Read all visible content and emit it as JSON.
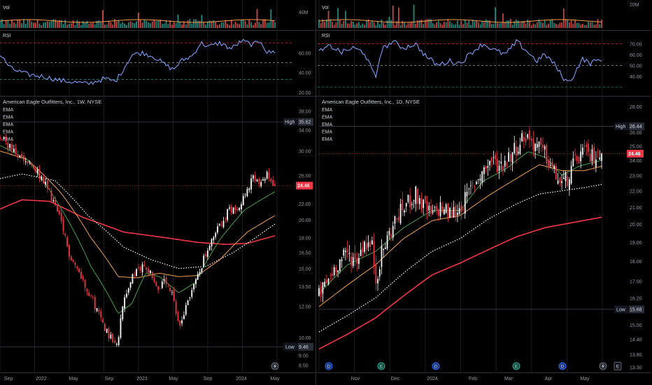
{
  "colors": {
    "background": "#000000",
    "grid": "#1c1c1c",
    "separator": "#2a2e39",
    "up": "#26a69a",
    "down": "#ef5350",
    "candle_up": "#ffffff",
    "candle_down": "#f23645",
    "rsi": "#7e9df6",
    "ema_fast": "#43a047",
    "ema_mid": "#f0a050",
    "ema_slow": "#ffffff",
    "ema_long": "#f23645",
    "volume_ma": "#f0a050",
    "last_price": "#f23645",
    "high_low_label": "#131722"
  },
  "icons": [
    "lightning-icon",
    "dividend-icon",
    "earnings-icon"
  ],
  "chart_data": [
    {
      "type": "candlestick",
      "title": "American Eagle Outfitters, Inc., 1W, NYSE",
      "indicators": [
        "EMA",
        "EMA",
        "EMA",
        "EMA",
        "EMA"
      ],
      "volume_label": "Vol",
      "volume_tick": "40M",
      "rsi_label": "RSI",
      "rsi_ticks": [
        "60.00",
        "40.00",
        "20.00"
      ],
      "price_ticks": [
        "38.00",
        "34.00",
        "30.00",
        "26.00",
        "22.00",
        "20.00",
        "18.00",
        "16.50",
        "15.00",
        "13.50",
        "12.00",
        "10.00",
        "9.00",
        "8.50"
      ],
      "x_labels": [
        "Sep",
        "2022",
        "May",
        "Sep",
        "2023",
        "May",
        "Sep",
        "2024",
        "May"
      ],
      "high_label": "High",
      "high_value": "35.62",
      "low_label": "Low",
      "low_value": "9.46",
      "last_price": "24.46",
      "ylim": [
        8.2,
        40.5
      ],
      "close_key": [
        [
          0,
          32.5
        ],
        [
          0.03,
          31
        ],
        [
          0.06,
          29.2
        ],
        [
          0.1,
          28
        ],
        [
          0.14,
          26.2
        ],
        [
          0.18,
          23.5
        ],
        [
          0.22,
          19.8
        ],
        [
          0.25,
          16.5
        ],
        [
          0.29,
          14.5
        ],
        [
          0.33,
          12.8
        ],
        [
          0.36,
          11.4
        ],
        [
          0.4,
          10
        ],
        [
          0.43,
          9.8
        ],
        [
          0.45,
          12.5
        ],
        [
          0.48,
          14.2
        ],
        [
          0.52,
          15.3
        ],
        [
          0.55,
          14.7
        ],
        [
          0.57,
          13.3
        ],
        [
          0.6,
          13.8
        ],
        [
          0.63,
          12.6
        ],
        [
          0.65,
          10.5
        ],
        [
          0.68,
          12.3
        ],
        [
          0.71,
          13.8
        ],
        [
          0.74,
          15.8
        ],
        [
          0.77,
          17.5
        ],
        [
          0.8,
          19.5
        ],
        [
          0.83,
          21
        ],
        [
          0.86,
          21.5
        ],
        [
          0.89,
          23
        ],
        [
          0.92,
          25.5
        ],
        [
          0.95,
          24.5
        ],
        [
          0.97,
          26
        ],
        [
          1.0,
          24.46
        ]
      ],
      "ema_fast_key": [
        [
          0,
          31
        ],
        [
          0.1,
          28.5
        ],
        [
          0.22,
          21.5
        ],
        [
          0.33,
          15.2
        ],
        [
          0.43,
          11.5
        ],
        [
          0.48,
          12.2
        ],
        [
          0.53,
          14.6
        ],
        [
          0.58,
          14.3
        ],
        [
          0.65,
          13
        ],
        [
          0.71,
          13.8
        ],
        [
          0.8,
          17.8
        ],
        [
          0.89,
          21.2
        ],
        [
          1.0,
          23.6
        ]
      ],
      "ema_mid_key": [
        [
          0,
          30
        ],
        [
          0.1,
          28.5
        ],
        [
          0.22,
          23.5
        ],
        [
          0.33,
          18
        ],
        [
          0.43,
          14.3
        ],
        [
          0.5,
          14.2
        ],
        [
          0.58,
          14.6
        ],
        [
          0.65,
          14.3
        ],
        [
          0.72,
          14.4
        ],
        [
          0.8,
          15.8
        ],
        [
          0.9,
          18.6
        ],
        [
          1.0,
          20.5
        ]
      ],
      "ema_slow_key": [
        [
          0,
          25.5
        ],
        [
          0.08,
          26.2
        ],
        [
          0.2,
          25.2
        ],
        [
          0.32,
          20.5
        ],
        [
          0.45,
          17
        ],
        [
          0.55,
          15.8
        ],
        [
          0.65,
          15
        ],
        [
          0.75,
          15.2
        ],
        [
          0.85,
          16.5
        ],
        [
          0.93,
          18
        ],
        [
          1.0,
          19.5
        ]
      ],
      "ema_long_key": [
        [
          0,
          21.3
        ],
        [
          0.08,
          22.5
        ],
        [
          0.18,
          22.3
        ],
        [
          0.3,
          20.3
        ],
        [
          0.45,
          18.6
        ],
        [
          0.6,
          18
        ],
        [
          0.72,
          17.5
        ],
        [
          0.82,
          17.3
        ],
        [
          0.9,
          17.4
        ],
        [
          1.0,
          18.2
        ]
      ],
      "rsi_key": [
        [
          0,
          58
        ],
        [
          0.04,
          44
        ],
        [
          0.1,
          38
        ],
        [
          0.16,
          36
        ],
        [
          0.22,
          32
        ],
        [
          0.28,
          30
        ],
        [
          0.32,
          28.5
        ],
        [
          0.38,
          34
        ],
        [
          0.42,
          31
        ],
        [
          0.45,
          44
        ],
        [
          0.48,
          58
        ],
        [
          0.52,
          60
        ],
        [
          0.56,
          56
        ],
        [
          0.6,
          48
        ],
        [
          0.63,
          43
        ],
        [
          0.66,
          52
        ],
        [
          0.7,
          57
        ],
        [
          0.73,
          70
        ],
        [
          0.76,
          66
        ],
        [
          0.8,
          70
        ],
        [
          0.84,
          64
        ],
        [
          0.88,
          72
        ],
        [
          0.92,
          68
        ],
        [
          0.95,
          72
        ],
        [
          0.97,
          60
        ],
        [
          1.0,
          61
        ]
      ]
    },
    {
      "type": "candlestick",
      "title": "American Eagle Outfitters, Inc., 1D, NYSE",
      "indicators": [
        "EMA",
        "EMA",
        "EMA",
        "EMA",
        "EMA"
      ],
      "volume_label": "Vol",
      "volume_tick": "20M",
      "rsi_label": "RSI",
      "rsi_ticks": [
        "70.00",
        "60.00",
        "50.00",
        "40.00"
      ],
      "price_ticks": [
        "28.00",
        "26.00",
        "25.00",
        "24.00",
        "23.00",
        "22.00",
        "21.00",
        "20.00",
        "19.00",
        "18.00",
        "17.00",
        "16.20",
        "15.00",
        "14.40",
        "13.80",
        "13.30"
      ],
      "x_labels": [
        "Nov",
        "Dec",
        "2024",
        "Feb",
        "Mar",
        "Apr",
        "May"
      ],
      "high_label": "High",
      "high_value": "26.44",
      "low_label": "Low",
      "low_value": "15.68",
      "last_price": "24.46",
      "ylim": [
        13.15,
        28.5
      ],
      "close_key": [
        [
          0,
          16.3
        ],
        [
          0.03,
          17
        ],
        [
          0.06,
          17.8
        ],
        [
          0.1,
          18.4
        ],
        [
          0.13,
          18
        ],
        [
          0.16,
          19
        ],
        [
          0.19,
          18.7
        ],
        [
          0.2,
          17
        ],
        [
          0.22,
          18.3
        ],
        [
          0.25,
          19.5
        ],
        [
          0.28,
          20.5
        ],
        [
          0.31,
          21.2
        ],
        [
          0.34,
          21.8
        ],
        [
          0.37,
          21
        ],
        [
          0.4,
          20.5
        ],
        [
          0.43,
          21
        ],
        [
          0.46,
          20.6
        ],
        [
          0.49,
          20.8
        ],
        [
          0.52,
          21.5
        ],
        [
          0.55,
          22.5
        ],
        [
          0.58,
          23.3
        ],
        [
          0.61,
          24
        ],
        [
          0.64,
          23.6
        ],
        [
          0.67,
          24.2
        ],
        [
          0.7,
          25
        ],
        [
          0.73,
          25.8
        ],
        [
          0.76,
          25.2
        ],
        [
          0.8,
          24.4
        ],
        [
          0.83,
          23.2
        ],
        [
          0.86,
          22.4
        ],
        [
          0.88,
          22.8
        ],
        [
          0.9,
          23.6
        ],
        [
          0.93,
          24.6
        ],
        [
          0.96,
          24.2
        ],
        [
          1.0,
          24.46
        ]
      ],
      "ema_fast_key": [
        [
          0,
          16.4
        ],
        [
          0.1,
          17.8
        ],
        [
          0.2,
          18.5
        ],
        [
          0.3,
          19.8
        ],
        [
          0.4,
          20.8
        ],
        [
          0.5,
          20.8
        ],
        [
          0.58,
          22.6
        ],
        [
          0.66,
          23.4
        ],
        [
          0.74,
          24.6
        ],
        [
          0.8,
          24.2
        ],
        [
          0.86,
          23
        ],
        [
          0.92,
          23.6
        ],
        [
          1.0,
          24
        ]
      ],
      "ema_mid_key": [
        [
          0,
          15.8
        ],
        [
          0.1,
          16.8
        ],
        [
          0.2,
          17.8
        ],
        [
          0.3,
          19.2
        ],
        [
          0.4,
          20.2
        ],
        [
          0.5,
          20.5
        ],
        [
          0.6,
          21.7
        ],
        [
          0.7,
          22.8
        ],
        [
          0.78,
          23.7
        ],
        [
          0.86,
          23.3
        ],
        [
          0.94,
          23.3
        ],
        [
          1.0,
          23.6
        ]
      ],
      "ema_slow_key": [
        [
          0,
          14.7
        ],
        [
          0.1,
          15.4
        ],
        [
          0.2,
          16.2
        ],
        [
          0.3,
          17.4
        ],
        [
          0.4,
          18.5
        ],
        [
          0.5,
          19.2
        ],
        [
          0.6,
          20.3
        ],
        [
          0.7,
          21.2
        ],
        [
          0.78,
          21.8
        ],
        [
          0.86,
          22
        ],
        [
          0.94,
          22.2
        ],
        [
          1.0,
          22.4
        ]
      ],
      "ema_long_key": [
        [
          0,
          14
        ],
        [
          0.1,
          14.6
        ],
        [
          0.2,
          15.3
        ],
        [
          0.3,
          16.3
        ],
        [
          0.4,
          17.3
        ],
        [
          0.5,
          17.9
        ],
        [
          0.6,
          18.6
        ],
        [
          0.7,
          19.3
        ],
        [
          0.8,
          19.8
        ],
        [
          0.9,
          20.1
        ],
        [
          1.0,
          20.4
        ]
      ],
      "rsi_key": [
        [
          0,
          62
        ],
        [
          0.04,
          68
        ],
        [
          0.08,
          62
        ],
        [
          0.12,
          66
        ],
        [
          0.16,
          62
        ],
        [
          0.2,
          38
        ],
        [
          0.22,
          64
        ],
        [
          0.26,
          72
        ],
        [
          0.3,
          66
        ],
        [
          0.34,
          70
        ],
        [
          0.38,
          58
        ],
        [
          0.42,
          50
        ],
        [
          0.46,
          54
        ],
        [
          0.5,
          52
        ],
        [
          0.54,
          62
        ],
        [
          0.58,
          70
        ],
        [
          0.62,
          64
        ],
        [
          0.66,
          60
        ],
        [
          0.7,
          72
        ],
        [
          0.74,
          62
        ],
        [
          0.77,
          54
        ],
        [
          0.8,
          60
        ],
        [
          0.83,
          52
        ],
        [
          0.86,
          40
        ],
        [
          0.88,
          34
        ],
        [
          0.9,
          40
        ],
        [
          0.93,
          56
        ],
        [
          0.96,
          52
        ],
        [
          1.0,
          56
        ]
      ]
    }
  ]
}
